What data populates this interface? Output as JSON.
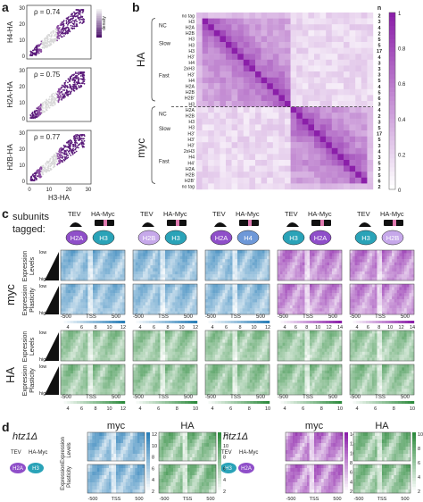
{
  "panels": {
    "a": {
      "letter": "a",
      "plots": [
        {
          "ylabel": "H4-HA",
          "rho": "ρ = 0.74"
        },
        {
          "ylabel": "H2A-HA",
          "rho": "ρ = 0.75"
        },
        {
          "ylabel": "H2B-HA",
          "rho": "ρ = 0.77"
        }
      ],
      "xlabel": "H3-HA",
      "xticks": [
        "0",
        "10",
        "20",
        "30"
      ],
      "yticks": [
        "30",
        "20",
        "10",
        "0"
      ],
      "density_label": "density"
    },
    "b": {
      "letter": "b",
      "n_header": "n",
      "group_ha": "HA",
      "group_myc": "myc",
      "ha_subgroups": [
        "NC",
        "Slow",
        "Fast"
      ],
      "myc_subgroups": [
        "NC",
        "Slow",
        "Fast"
      ],
      "row_labels": [
        "no tag",
        "H3",
        "H2A",
        "H2B",
        "H3",
        "H3",
        "H3",
        "H3'",
        "H4",
        "2xH3",
        "H3'",
        "H4",
        "H2A",
        "H2B",
        "H2B'",
        "H3",
        "H2A",
        "H2B",
        "H3",
        "H3",
        "H3'",
        "H3'",
        "H3'",
        "2xH3",
        "H4",
        "H4'",
        "H2A",
        "H2B",
        "H2B'",
        "no tag"
      ],
      "n_values": [
        "2",
        "3",
        "4",
        "2",
        "5",
        "5",
        "17",
        "4",
        "3",
        "3",
        "3",
        "5",
        "4",
        "5",
        "6",
        "3",
        "4",
        "2",
        "3",
        "5",
        "17",
        "5",
        "3",
        "4",
        "3",
        "5",
        "3",
        "5",
        "6",
        "2"
      ],
      "colorbar_ticks": [
        "1",
        "0.8",
        "0.6",
        "0.4",
        "0.2",
        "0"
      ]
    },
    "c": {
      "letter": "c",
      "subunits_label": "subunits\ntagged:",
      "tev_label": "TEV",
      "hamyc_label": "HA-Myc",
      "constructs": [
        {
          "a": "H2A",
          "b": "H3"
        },
        {
          "a": "H2B",
          "b": "H3"
        },
        {
          "a": "H2A",
          "b": "H4"
        },
        {
          "a": "H3",
          "b": "H2A"
        },
        {
          "a": "H3",
          "b": "H2B"
        }
      ],
      "myc_label": "myc",
      "ha_label": "HA",
      "row_labels": [
        "Expression Levels",
        "Expression Plasticity",
        "Expression Levels",
        "Expression Plasticity"
      ],
      "low": "low",
      "high": "high",
      "xaxis": [
        "-500",
        "TSS",
        "500"
      ],
      "myc_scale_ticks": [
        [
          "4",
          "6",
          "8",
          "10",
          "12"
        ],
        [
          "4",
          "6",
          "8",
          "10",
          "12"
        ],
        [
          "4",
          "6",
          "8",
          "10",
          "12"
        ],
        [
          "4",
          "6",
          "8",
          "10",
          "12",
          "14"
        ],
        [
          "4",
          "6",
          "8",
          "10",
          "12",
          "14"
        ]
      ],
      "ha_scale_ticks": [
        [
          "4",
          "6",
          "8",
          "10",
          "12"
        ],
        [
          "4",
          "6",
          "8",
          "10"
        ],
        [
          "4",
          "6",
          "8",
          "10"
        ],
        [
          "4",
          "6",
          "8",
          "10"
        ],
        [
          "4",
          "6",
          "8",
          "10"
        ]
      ]
    },
    "d": {
      "letter": "d",
      "strain1": "htz1Δ",
      "strain2": "htz1Δ",
      "myc_label": "myc",
      "ha_label": "HA",
      "tev_label": "TEV",
      "hamyc_label": "HA-Myc",
      "row_labels": [
        "Expression Levels",
        "Expression Plasticity"
      ],
      "left_construct": {
        "a": "H2A",
        "b": "H3"
      },
      "right_construct": {
        "a": "H3",
        "b": "H2A"
      },
      "xaxis": [
        "-500",
        "TSS",
        "500"
      ],
      "scale1": [
        "12",
        "10",
        "8",
        "6",
        "4",
        "2"
      ],
      "scale2": [
        "12",
        "10",
        "8",
        "6",
        "4",
        "2"
      ],
      "scale3": [
        "14",
        "12",
        "10",
        "8",
        "6",
        "4",
        "2"
      ],
      "scale4": [
        "10",
        "8",
        "6",
        "4",
        "2"
      ]
    }
  },
  "colors": {
    "purple": "#8b1fa9",
    "blue": "#2b7fb8",
    "green": "#2e8b3e",
    "h2a_purple": "#8f4fc9",
    "h3_teal": "#2aa3b8",
    "h2b_light": "#c6a8ea",
    "h4_blue": "#6e98d8"
  }
}
